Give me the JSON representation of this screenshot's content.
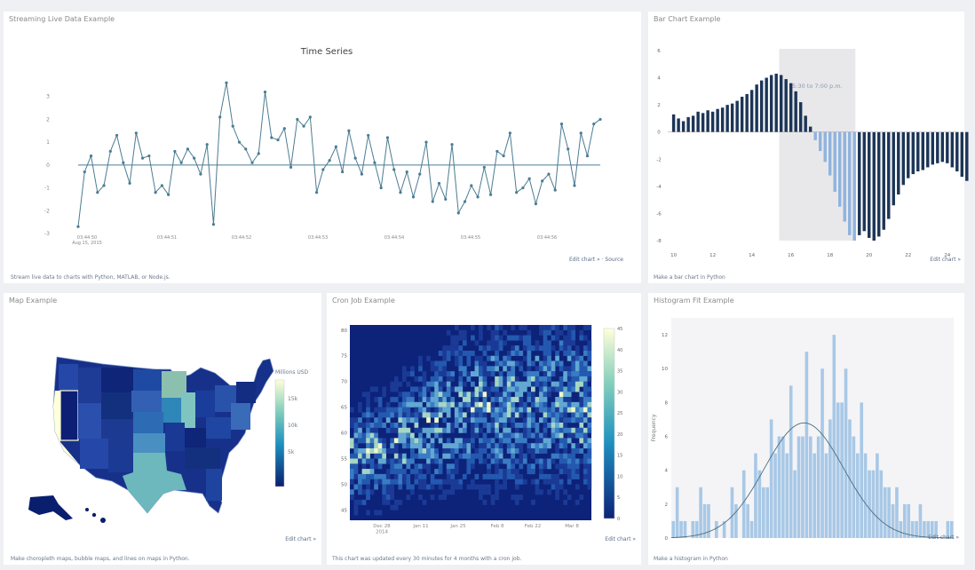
{
  "panels": {
    "streaming": {
      "title": "Streaming Live Data Example",
      "caption": "Stream live data to charts with Python, MATLAB, or Node.js.",
      "edit_label": "Edit chart » · Source"
    },
    "bar": {
      "title": "Bar Chart Example",
      "caption": "Make a bar chart in Python",
      "edit_label": "Edit chart »",
      "annotation": "5:30 to 7:00 p.m."
    },
    "map": {
      "title": "Map Example",
      "caption": "Make choropleth maps, bubble maps, and lines on maps in Python.",
      "edit_label": "Edit chart »",
      "colorbar_title": "Millions USD",
      "colorbar_ticks": [
        "15k",
        "10k",
        "5k"
      ]
    },
    "cron": {
      "title": "Cron Job Example",
      "caption": "This chart was updated every 30 minutes for 4 months with a cron job.",
      "edit_label": "Edit chart »"
    },
    "histogram": {
      "title": "Histogram Fit Example",
      "caption": "Make a histogram in Python",
      "edit_label": "Edit chart »"
    }
  },
  "colors": {
    "line": "#4b7c92",
    "bar_dark": "#1c3557",
    "bar_light": "#8fb3df",
    "heat_bg": "#0d2279",
    "hist_bar": "#a8c8e6",
    "map_dark": "#0a1e6e",
    "map_light": "#ffffd9"
  },
  "chart_data": [
    {
      "type": "line",
      "title": "Time Series",
      "x_tick_labels": [
        "03:44:50\nAug 15, 2015",
        "03:44:51",
        "03:44:52",
        "03:44:53",
        "03:44:54",
        "03:44:55",
        "03:44:56"
      ],
      "ylim": [
        -3,
        4
      ],
      "y_ticks": [
        3,
        2,
        1,
        0,
        -1,
        -2,
        -3
      ],
      "values": [
        -2.7,
        -0.3,
        0.4,
        -1.2,
        -0.9,
        0.6,
        1.3,
        0.1,
        -0.8,
        1.4,
        0.3,
        0.4,
        -1.2,
        -0.9,
        -1.3,
        0.6,
        0.1,
        0.7,
        0.3,
        -0.4,
        0.9,
        -2.6,
        2.1,
        3.6,
        1.7,
        1.0,
        0.7,
        0.1,
        0.5,
        3.2,
        1.2,
        1.1,
        1.6,
        -0.1,
        2.0,
        1.7,
        2.1,
        -1.2,
        -0.2,
        0.2,
        0.8,
        -0.3,
        1.5,
        0.3,
        -0.4,
        1.3,
        0.1,
        -1.0,
        1.2,
        -0.2,
        -1.2,
        -0.3,
        -1.4,
        -0.4,
        1.0,
        -1.6,
        -0.8,
        -1.5,
        0.9,
        -2.1,
        -1.6,
        -0.9,
        -1.4,
        -0.1,
        -1.3,
        0.6,
        0.4,
        1.4,
        -1.2,
        -1.0,
        -0.6,
        -1.7,
        -0.7,
        -0.4,
        -1.1,
        1.8,
        0.7,
        -0.9,
        1.4,
        0.4,
        1.8,
        2.0
      ]
    },
    {
      "type": "bar",
      "x_tick_labels": [
        "10",
        "12",
        "14",
        "16",
        "18",
        "20",
        "22",
        "24"
      ],
      "xlim": [
        9.7,
        24.6
      ],
      "y_ticks": [
        6,
        4,
        2,
        0,
        -2,
        -4,
        -6,
        -8
      ],
      "ylim": [
        -8,
        6
      ],
      "shaded_range": [
        15.4,
        19.3
      ],
      "x_start": 10.0,
      "x_step": 0.25,
      "values": [
        1.3,
        1.0,
        0.8,
        1.1,
        1.2,
        1.5,
        1.4,
        1.6,
        1.5,
        1.7,
        1.8,
        2.0,
        2.1,
        2.3,
        2.6,
        2.8,
        3.1,
        3.5,
        3.8,
        4.0,
        4.2,
        4.3,
        4.2,
        3.9,
        3.6,
        3.0,
        2.2,
        1.2,
        0.4,
        -0.6,
        -1.4,
        -2.2,
        -3.2,
        -4.4,
        -5.5,
        -6.6,
        -7.6,
        -8.0,
        -7.6,
        -7.3,
        -7.8,
        -8.0,
        -7.7,
        -7.2,
        -6.4,
        -5.4,
        -4.6,
        -3.9,
        -3.4,
        -3.1,
        -2.9,
        -2.8,
        -2.6,
        -2.4,
        -2.3,
        -2.2,
        -2.3,
        -2.6,
        -2.9,
        -3.3,
        -3.6
      ]
    },
    {
      "type": "heatmap",
      "x_tick_labels": [
        "Dec 28\n2014",
        "Jan 11",
        "Jan 25",
        "Feb 8",
        "Feb 22",
        "Mar 8"
      ],
      "y_ticks": [
        80,
        75,
        70,
        65,
        60,
        55,
        50,
        45
      ],
      "ylim": [
        43,
        81
      ],
      "colorbar_ticks": [
        45,
        40,
        35,
        30,
        25,
        20,
        15,
        10,
        5,
        0
      ],
      "zlim": [
        0,
        45
      ]
    },
    {
      "type": "bar",
      "ylabel": "Frequency",
      "y_ticks": [
        12,
        10,
        8,
        6,
        4,
        2,
        0
      ],
      "ylim": [
        0,
        13
      ],
      "values": [
        1,
        3,
        1,
        1,
        0,
        1,
        1,
        3,
        2,
        2,
        0,
        1,
        0,
        1,
        0,
        3,
        2,
        0,
        4,
        2,
        1,
        5,
        4,
        3,
        3,
        7,
        5,
        6,
        6,
        5,
        9,
        4,
        6,
        6,
        11,
        6,
        5,
        6,
        10,
        5,
        7,
        12,
        8,
        8,
        10,
        7,
        6,
        5,
        8,
        5,
        4,
        4,
        5,
        4,
        3,
        3,
        2,
        3,
        1,
        2,
        2,
        1,
        1,
        2,
        1,
        1,
        1,
        1,
        0,
        0,
        1,
        1
      ]
    }
  ]
}
